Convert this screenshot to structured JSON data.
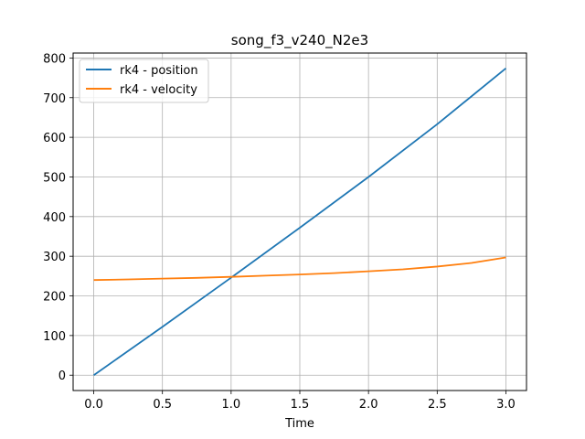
{
  "chart_data": {
    "type": "line",
    "title": "song_f3_v240_N2e3",
    "xlabel": "Time",
    "ylabel": "",
    "xlim": [
      -0.15,
      3.15
    ],
    "ylim": [
      -38.7,
      812.5
    ],
    "xticks": [
      0.0,
      0.5,
      1.0,
      1.5,
      2.0,
      2.5,
      3.0
    ],
    "xtick_labels": [
      "0.0",
      "0.5",
      "1.0",
      "1.5",
      "2.0",
      "2.5",
      "3.0"
    ],
    "yticks": [
      0,
      100,
      200,
      300,
      400,
      500,
      600,
      700,
      800
    ],
    "ytick_labels": [
      "0",
      "100",
      "200",
      "300",
      "400",
      "500",
      "600",
      "700",
      "800"
    ],
    "grid": true,
    "legend_position": "top-left",
    "series": [
      {
        "name": "rk4 - position",
        "color": "#1f77b4",
        "x": [
          0.0,
          0.5,
          1.0,
          1.5,
          2.0,
          2.5,
          3.0
        ],
        "values": [
          0,
          122,
          246,
          372,
          500,
          633,
          774
        ]
      },
      {
        "name": "rk4 - velocity",
        "color": "#ff7f0e",
        "x": [
          0.0,
          0.25,
          0.5,
          0.75,
          1.0,
          1.25,
          1.5,
          1.75,
          2.0,
          2.25,
          2.5,
          2.75,
          3.0
        ],
        "values": [
          240,
          241.5,
          243.5,
          245.5,
          248,
          251,
          254,
          257.5,
          262,
          267,
          274,
          283,
          297
        ]
      }
    ]
  }
}
